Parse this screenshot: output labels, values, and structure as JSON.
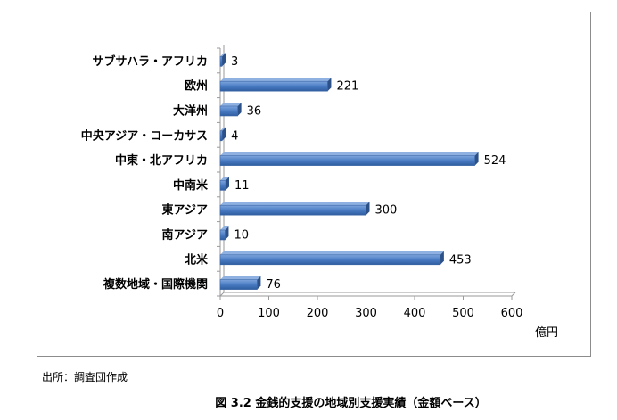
{
  "chart_data": {
    "type": "bar",
    "orientation": "horizontal",
    "categories": [
      "サブサハラ・アフリカ",
      "欧州",
      "大洋州",
      "中央アジア・コーカサス",
      "中東・北アフリカ",
      "中南米",
      "東アジア",
      "南アジア",
      "北米",
      "複数地域・国際機関"
    ],
    "values": [
      3,
      221,
      36,
      4,
      524,
      11,
      300,
      10,
      453,
      76
    ],
    "xlim": [
      0,
      600
    ],
    "xticks": [
      0,
      100,
      200,
      300,
      400,
      500,
      600
    ],
    "unit_label": "億円",
    "data_labels": true,
    "grid": false,
    "legend": "none",
    "bar_color": "#4a7cc4"
  },
  "source_note": "出所：調査団作成",
  "caption": "図 3.2  金銭的支援の地域別支援実績（金額ベース）"
}
